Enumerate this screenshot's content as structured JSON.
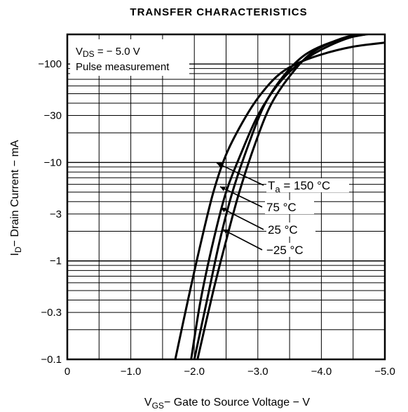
{
  "chart_data": {
    "type": "line",
    "title": "TRANSFER CHARACTERISTICS",
    "xlabel": {
      "main": "V",
      "sub": "GS",
      "rest": "− Gate to Source Voltage − V"
    },
    "ylabel": {
      "main": "I",
      "sub": "D",
      "rest": "− Drain Current − mA"
    },
    "x_axis": {
      "range": [
        0,
        -5.0
      ],
      "ticks": [
        0,
        -1.0,
        -2.0,
        -3.0,
        -4.0,
        -5.0
      ],
      "tick_labels": [
        "0",
        "−1.0",
        "−2.0",
        "−3.0",
        "−4.0",
        "−5.0"
      ],
      "minor_step": 0.5
    },
    "y_axis": {
      "scale": "log",
      "range": [
        -0.1,
        -200
      ],
      "ticks": [
        -0.1,
        -0.3,
        -1,
        -3,
        -10,
        -30,
        -100
      ],
      "tick_labels": [
        "−0.1",
        "−0.3",
        "−1",
        "−3",
        "−10",
        "−30",
        "−100"
      ]
    },
    "grid": true,
    "annotations": {
      "vds": {
        "main": "V",
        "sub": "DS",
        "rest": " = − 5.0 V"
      },
      "pulse": "Pulse measurement"
    },
    "legend_prefix": {
      "main": "T",
      "sub": "a",
      "rest": " = "
    },
    "series": [
      {
        "name": "150 °C",
        "x": [
          -1.7,
          -1.9,
          -2.1,
          -2.3,
          -2.5,
          -2.75,
          -3.0,
          -3.3,
          -3.6,
          -4.0,
          -4.5,
          -5.0
        ],
        "y": [
          -0.1,
          -0.4,
          -1.5,
          -5,
          -12,
          -25,
          -45,
          -75,
          -100,
          -125,
          -150,
          -165
        ]
      },
      {
        "name": "75 °C",
        "x": [
          -1.95,
          -2.1,
          -2.3,
          -2.5,
          -2.75,
          -3.0,
          -3.3,
          -3.6,
          -4.0,
          -4.5,
          -5.0
        ],
        "y": [
          -0.1,
          -0.4,
          -1.6,
          -5,
          -13,
          -30,
          -60,
          -95,
          -140,
          -190,
          -210
        ]
      },
      {
        "name": "25 °C",
        "x": [
          -2.0,
          -2.2,
          -2.4,
          -2.6,
          -2.85,
          -3.1,
          -3.4,
          -3.75,
          -4.2,
          -4.7,
          -5.0
        ],
        "y": [
          -0.1,
          -0.4,
          -1.6,
          -5,
          -15,
          -38,
          -75,
          -125,
          -170,
          -200,
          -210
        ]
      },
      {
        "name": "−25 °C",
        "x": [
          -2.05,
          -2.3,
          -2.5,
          -2.7,
          -2.95,
          -3.2,
          -3.5,
          -3.85,
          -4.3,
          -4.75,
          -5.0
        ],
        "y": [
          -0.1,
          -0.5,
          -1.6,
          -4.8,
          -15,
          -38,
          -75,
          -130,
          -180,
          -210,
          -210
        ]
      }
    ]
  }
}
